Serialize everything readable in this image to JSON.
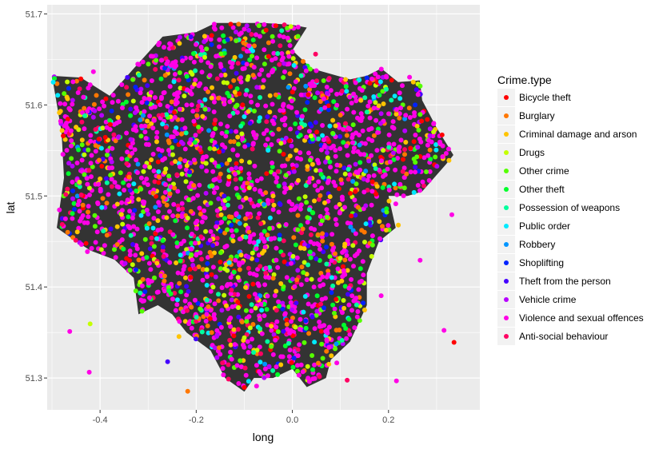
{
  "chart_data": {
    "type": "scatter",
    "title": "",
    "xlabel": "long",
    "ylabel": "lat",
    "xlim": [
      -0.51,
      0.39
    ],
    "ylim": [
      51.265,
      51.71
    ],
    "x_ticks": [
      -0.4,
      -0.2,
      0.0,
      0.2
    ],
    "x_tick_labels": [
      "-0.4",
      "-0.2",
      "0.0",
      "0.2"
    ],
    "y_ticks": [
      51.3,
      51.4,
      51.5,
      51.6,
      51.7
    ],
    "y_tick_labels": [
      "51.3",
      "51.4",
      "51.5",
      "51.6",
      "51.7"
    ],
    "grid": true,
    "panel_background": "#ebebeb",
    "basemap_color": "#333333",
    "legend": {
      "title": "Crime.type",
      "placement": "right",
      "entries": [
        {
          "label": "Bicycle theft",
          "color": "#ff0000"
        },
        {
          "label": "Burglary",
          "color": "#ff7700"
        },
        {
          "label": "Criminal damage and arson",
          "color": "#ffc400"
        },
        {
          "label": "Drugs",
          "color": "#c4ff00"
        },
        {
          "label": "Other crime",
          "color": "#55ff00"
        },
        {
          "label": "Other theft",
          "color": "#00ff2b"
        },
        {
          "label": "Possession of weapons",
          "color": "#00ff9d"
        },
        {
          "label": "Public order",
          "color": "#00eaff"
        },
        {
          "label": "Robbery",
          "color": "#0095ff"
        },
        {
          "label": "Shoplifting",
          "color": "#0022ff"
        },
        {
          "label": "Theft from the person",
          "color": "#4400ff"
        },
        {
          "label": "Vehicle crime",
          "color": "#b700ff"
        },
        {
          "label": "Violence and sexual offences",
          "color": "#ff00e6"
        },
        {
          "label": "Anti-social behaviour",
          "color": "#ff0062"
        }
      ]
    },
    "boundary": [
      [
        -0.49,
        51.465
      ],
      [
        -0.475,
        51.52
      ],
      [
        -0.48,
        51.57
      ],
      [
        -0.5,
        51.632
      ],
      [
        -0.44,
        51.63
      ],
      [
        -0.38,
        51.61
      ],
      [
        -0.33,
        51.64
      ],
      [
        -0.27,
        51.675
      ],
      [
        -0.2,
        51.68
      ],
      [
        -0.16,
        51.69
      ],
      [
        -0.1,
        51.69
      ],
      [
        -0.06,
        51.69
      ],
      [
        0.0,
        51.688
      ],
      [
        0.03,
        51.685
      ],
      [
        0.0,
        51.66
      ],
      [
        0.04,
        51.64
      ],
      [
        0.12,
        51.628
      ],
      [
        0.155,
        51.632
      ],
      [
        0.185,
        51.64
      ],
      [
        0.22,
        51.625
      ],
      [
        0.265,
        51.627
      ],
      [
        0.27,
        51.605
      ],
      [
        0.3,
        51.575
      ],
      [
        0.335,
        51.545
      ],
      [
        0.32,
        51.535
      ],
      [
        0.295,
        51.52
      ],
      [
        0.27,
        51.505
      ],
      [
        0.24,
        51.5
      ],
      [
        0.2,
        51.5
      ],
      [
        0.215,
        51.465
      ],
      [
        0.18,
        51.45
      ],
      [
        0.155,
        51.415
      ],
      [
        0.155,
        51.38
      ],
      [
        0.12,
        51.34
      ],
      [
        0.08,
        51.32
      ],
      [
        0.07,
        51.3
      ],
      [
        0.03,
        51.29
      ],
      [
        0.0,
        51.31
      ],
      [
        -0.04,
        51.3
      ],
      [
        -0.08,
        51.3
      ],
      [
        -0.1,
        51.285
      ],
      [
        -0.14,
        51.3
      ],
      [
        -0.17,
        51.33
      ],
      [
        -0.22,
        51.35
      ],
      [
        -0.25,
        51.37
      ],
      [
        -0.28,
        51.38
      ],
      [
        -0.32,
        51.37
      ],
      [
        -0.33,
        51.41
      ],
      [
        -0.37,
        51.43
      ],
      [
        -0.42,
        51.44
      ],
      [
        -0.455,
        51.452
      ],
      [
        -0.49,
        51.465
      ]
    ]
  }
}
